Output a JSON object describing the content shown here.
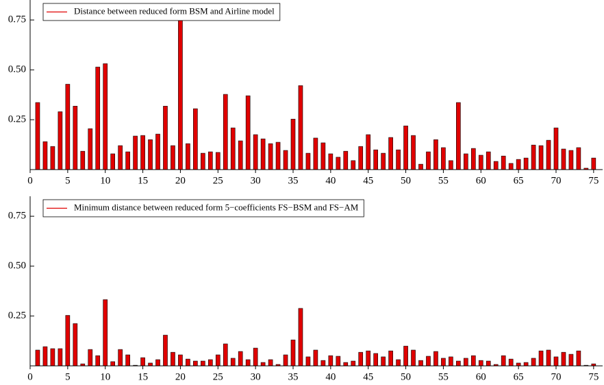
{
  "chart_data": [
    {
      "type": "bar",
      "legend_loc": "upper left",
      "x": [
        1,
        2,
        3,
        4,
        5,
        6,
        7,
        8,
        9,
        10,
        11,
        12,
        13,
        14,
        15,
        16,
        17,
        18,
        19,
        20,
        21,
        22,
        23,
        24,
        25,
        26,
        27,
        28,
        29,
        30,
        31,
        32,
        33,
        34,
        35,
        36,
        37,
        38,
        39,
        40,
        41,
        42,
        43,
        44,
        45,
        46,
        47,
        48,
        49,
        50,
        51,
        52,
        53,
        54,
        55,
        56,
        57,
        58,
        59,
        60,
        61,
        62,
        63,
        64,
        65,
        66,
        67,
        68,
        69,
        70,
        71,
        72,
        73,
        74,
        75
      ],
      "series": [
        {
          "name": "Distance between reduced form BSM and Airline model",
          "color": "#e00000",
          "values": [
            0.336,
            0.14,
            0.116,
            0.29,
            0.428,
            0.318,
            0.092,
            0.205,
            0.514,
            0.531,
            0.079,
            0.12,
            0.089,
            0.168,
            0.171,
            0.15,
            0.178,
            0.318,
            0.12,
            0.75,
            0.13,
            0.305,
            0.082,
            0.089,
            0.086,
            0.377,
            0.209,
            0.144,
            0.37,
            0.175,
            0.154,
            0.13,
            0.137,
            0.096,
            0.253,
            0.421,
            0.082,
            0.158,
            0.134,
            0.079,
            0.062,
            0.092,
            0.045,
            0.116,
            0.175,
            0.099,
            0.082,
            0.161,
            0.099,
            0.219,
            0.171,
            0.027,
            0.089,
            0.15,
            0.11,
            0.045,
            0.336,
            0.079,
            0.106,
            0.072,
            0.089,
            0.041,
            0.068,
            0.031,
            0.051,
            0.058,
            0.123,
            0.12,
            0.147,
            0.209,
            0.103,
            0.096,
            0.11,
            0.007,
            0.058
          ]
        }
      ],
      "xlim": [
        0,
        76.2
      ],
      "xticks": [
        0,
        5,
        10,
        15,
        20,
        25,
        30,
        35,
        40,
        45,
        50,
        55,
        60,
        65,
        70,
        75
      ],
      "ylim": [
        0,
        0.85
      ],
      "yticks": [
        0.25,
        {
          "value": 0.5,
          "label": "0.50"
        },
        0.75
      ]
    },
    {
      "type": "bar",
      "legend_loc": "upper left",
      "x": [
        1,
        2,
        3,
        4,
        5,
        6,
        7,
        8,
        9,
        10,
        11,
        12,
        13,
        14,
        15,
        16,
        17,
        18,
        19,
        20,
        21,
        22,
        23,
        24,
        25,
        26,
        27,
        28,
        29,
        30,
        31,
        32,
        33,
        34,
        35,
        36,
        37,
        38,
        39,
        40,
        41,
        42,
        43,
        44,
        45,
        46,
        47,
        48,
        49,
        50,
        51,
        52,
        53,
        54,
        55,
        56,
        57,
        58,
        59,
        60,
        61,
        62,
        63,
        64,
        65,
        66,
        67,
        68,
        69,
        70,
        71,
        72,
        73,
        74,
        75
      ],
      "series": [
        {
          "name": "Minimum distance between reduced form 5−coefficients FS−BSM and FS−AM",
          "color": "#e00000",
          "values": [
            0.079,
            0.096,
            0.086,
            0.086,
            0.253,
            0.212,
            0.01,
            0.082,
            0.051,
            0.332,
            0.021,
            0.082,
            0.055,
            0.003,
            0.041,
            0.014,
            0.031,
            0.154,
            0.068,
            0.055,
            0.034,
            0.024,
            0.024,
            0.031,
            0.055,
            0.11,
            0.038,
            0.072,
            0.031,
            0.089,
            0.017,
            0.031,
            0.007,
            0.055,
            0.13,
            0.288,
            0.045,
            0.079,
            0.027,
            0.051,
            0.048,
            0.017,
            0.024,
            0.068,
            0.075,
            0.062,
            0.045,
            0.075,
            0.031,
            0.099,
            0.079,
            0.027,
            0.048,
            0.072,
            0.038,
            0.045,
            0.024,
            0.038,
            0.051,
            0.027,
            0.024,
            0.007,
            0.051,
            0.034,
            0.014,
            0.017,
            0.038,
            0.075,
            0.079,
            0.045,
            0.068,
            0.058,
            0.075,
            0.003,
            0.01
          ]
        }
      ],
      "xlim": [
        0,
        76.2
      ],
      "xticks": [
        0,
        5,
        10,
        15,
        20,
        25,
        30,
        35,
        40,
        45,
        50,
        55,
        60,
        65,
        70,
        75
      ],
      "ylim": [
        0,
        0.85
      ],
      "yticks": [
        0.25,
        {
          "value": 0.5,
          "label": "0.50"
        },
        0.75
      ]
    }
  ]
}
